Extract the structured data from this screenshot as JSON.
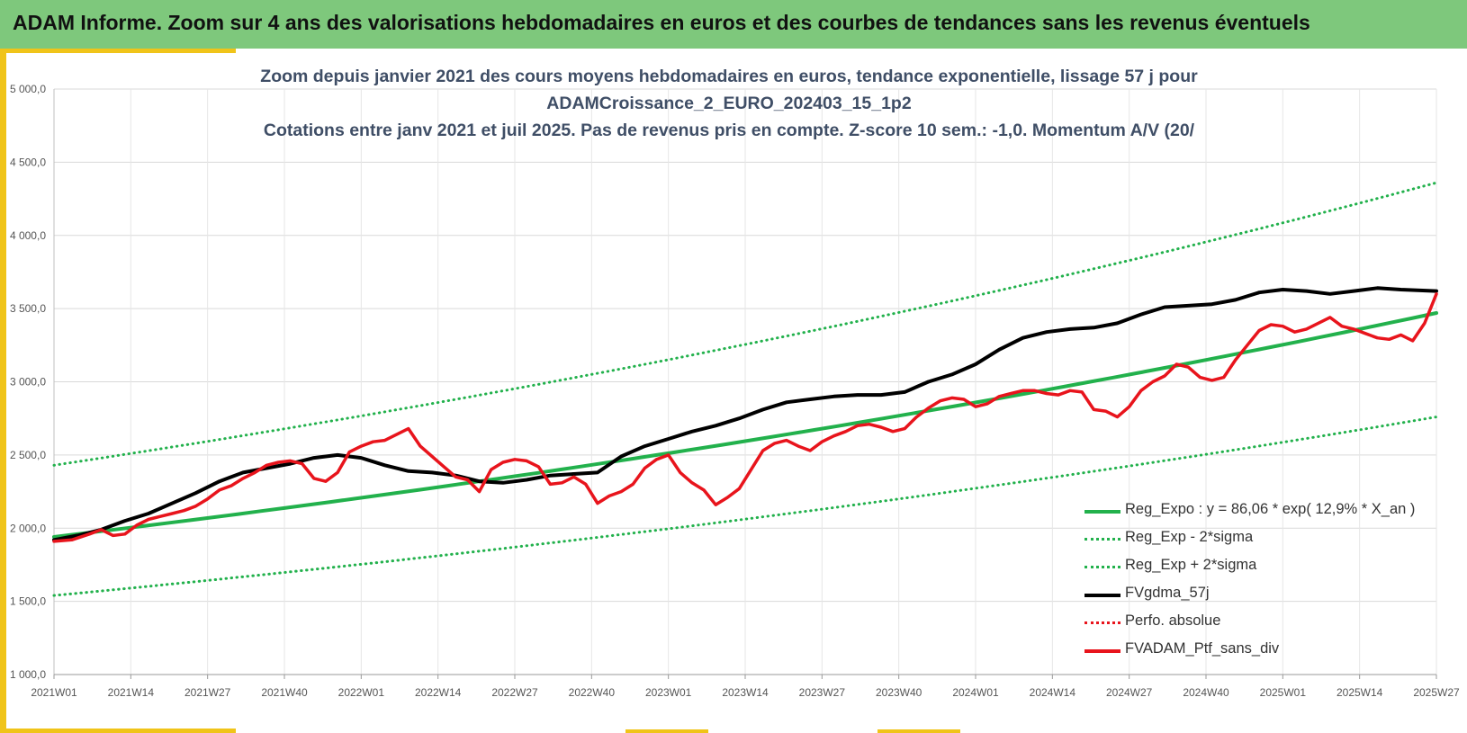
{
  "banner": {
    "title": "ADAM Informe. Zoom sur 4 ans des valorisations hebdomadaires en euros et des courbes de tendances sans les revenus éventuels"
  },
  "colors": {
    "banner_bg": "#7ec87c",
    "accent_yellow": "#f0c419",
    "trend_green": "#22b14c",
    "sigma_green": "#22b14c",
    "moving_avg": "#000000",
    "portfolio_red": "#e8141c"
  },
  "chart_data": {
    "type": "line",
    "title_lines": [
      "Zoom depuis janvier 2021 des cours moyens hebdomadaires  en euros, tendance exponentielle, lissage 57 j pour",
      "ADAMCroissance_2_EURO_202403_15_1p2",
      "Cotations  entre janv 2021 et juil 2025. Pas de revenus pris en compte. Z-score 10 sem.: -1,0. Momentum A/V (20/"
    ],
    "ylim": [
      1000,
      5000
    ],
    "y_ticks": [
      "1 000,0",
      "1 500,0",
      "2 000,0",
      "2 500,0",
      "3 000,0",
      "3 500,0",
      "4 000,0",
      "4 500,0",
      "5 000,0"
    ],
    "x_ticks": [
      "2021W01",
      "2021W14",
      "2021W27",
      "2021W40",
      "2022W01",
      "2022W14",
      "2022W27",
      "2022W40",
      "2023W01",
      "2023W14",
      "2023W27",
      "2023W40",
      "2024W01",
      "2024W14",
      "2024W27",
      "2024W40",
      "2025W01",
      "2025W14",
      "2025W27"
    ],
    "x_unit": "weeks since 2021W01",
    "grid": true,
    "legend_position": "bottom-right",
    "series": [
      {
        "name": "Reg_Expo : y = 86,06 * exp( 12,9% *  X_an )",
        "style": "solid-green",
        "x": [
          0,
          234
        ],
        "start": 1940,
        "end": 3470,
        "kind": "exp"
      },
      {
        "name": "Reg_Exp - 2*sigma",
        "style": "dotted-green",
        "x": [
          0,
          234
        ],
        "start": 1540,
        "end": 2760,
        "kind": "exp"
      },
      {
        "name": "Reg_Exp + 2*sigma",
        "style": "dotted-green",
        "x": [
          0,
          234
        ],
        "start": 2430,
        "end": 4360,
        "kind": "exp"
      },
      {
        "name": "FVgdma_57j",
        "style": "solid-black",
        "points": [
          [
            0,
            1920
          ],
          [
            4,
            1950
          ],
          [
            8,
            1990
          ],
          [
            12,
            2050
          ],
          [
            16,
            2100
          ],
          [
            20,
            2170
          ],
          [
            24,
            2240
          ],
          [
            28,
            2320
          ],
          [
            32,
            2380
          ],
          [
            36,
            2410
          ],
          [
            40,
            2440
          ],
          [
            44,
            2480
          ],
          [
            48,
            2500
          ],
          [
            52,
            2480
          ],
          [
            56,
            2430
          ],
          [
            60,
            2390
          ],
          [
            64,
            2380
          ],
          [
            68,
            2360
          ],
          [
            72,
            2320
          ],
          [
            76,
            2310
          ],
          [
            80,
            2330
          ],
          [
            84,
            2360
          ],
          [
            88,
            2370
          ],
          [
            92,
            2380
          ],
          [
            96,
            2490
          ],
          [
            100,
            2560
          ],
          [
            104,
            2610
          ],
          [
            108,
            2660
          ],
          [
            112,
            2700
          ],
          [
            116,
            2750
          ],
          [
            120,
            2810
          ],
          [
            124,
            2860
          ],
          [
            128,
            2880
          ],
          [
            132,
            2900
          ],
          [
            136,
            2910
          ],
          [
            140,
            2910
          ],
          [
            144,
            2930
          ],
          [
            148,
            3000
          ],
          [
            152,
            3050
          ],
          [
            156,
            3120
          ],
          [
            160,
            3220
          ],
          [
            164,
            3300
          ],
          [
            168,
            3340
          ],
          [
            172,
            3360
          ],
          [
            176,
            3370
          ],
          [
            180,
            3400
          ],
          [
            184,
            3460
          ],
          [
            188,
            3510
          ],
          [
            192,
            3520
          ],
          [
            196,
            3530
          ],
          [
            200,
            3560
          ],
          [
            204,
            3610
          ],
          [
            208,
            3630
          ],
          [
            212,
            3620
          ],
          [
            216,
            3600
          ],
          [
            220,
            3620
          ],
          [
            224,
            3640
          ],
          [
            228,
            3630
          ],
          [
            234,
            3620
          ]
        ]
      },
      {
        "name": "Perfo. absolue",
        "style": "dotted-red",
        "points": []
      },
      {
        "name": "FVADAM_Ptf_sans_div",
        "style": "solid-red",
        "points": [
          [
            0,
            1910
          ],
          [
            3,
            1920
          ],
          [
            6,
            1960
          ],
          [
            8,
            1990
          ],
          [
            10,
            1950
          ],
          [
            12,
            1960
          ],
          [
            14,
            2020
          ],
          [
            16,
            2060
          ],
          [
            18,
            2080
          ],
          [
            20,
            2100
          ],
          [
            22,
            2120
          ],
          [
            24,
            2150
          ],
          [
            26,
            2200
          ],
          [
            28,
            2260
          ],
          [
            30,
            2290
          ],
          [
            32,
            2340
          ],
          [
            34,
            2380
          ],
          [
            36,
            2430
          ],
          [
            38,
            2450
          ],
          [
            40,
            2460
          ],
          [
            42,
            2440
          ],
          [
            44,
            2340
          ],
          [
            46,
            2320
          ],
          [
            48,
            2380
          ],
          [
            50,
            2520
          ],
          [
            52,
            2560
          ],
          [
            54,
            2590
          ],
          [
            56,
            2600
          ],
          [
            58,
            2640
          ],
          [
            60,
            2680
          ],
          [
            62,
            2560
          ],
          [
            64,
            2490
          ],
          [
            66,
            2420
          ],
          [
            68,
            2350
          ],
          [
            70,
            2330
          ],
          [
            72,
            2250
          ],
          [
            74,
            2400
          ],
          [
            76,
            2450
          ],
          [
            78,
            2470
          ],
          [
            80,
            2460
          ],
          [
            82,
            2420
          ],
          [
            84,
            2300
          ],
          [
            86,
            2310
          ],
          [
            88,
            2350
          ],
          [
            90,
            2300
          ],
          [
            92,
            2170
          ],
          [
            94,
            2220
          ],
          [
            96,
            2250
          ],
          [
            98,
            2300
          ],
          [
            100,
            2410
          ],
          [
            102,
            2470
          ],
          [
            104,
            2500
          ],
          [
            106,
            2380
          ],
          [
            108,
            2310
          ],
          [
            110,
            2260
          ],
          [
            112,
            2160
          ],
          [
            114,
            2210
          ],
          [
            116,
            2270
          ],
          [
            118,
            2400
          ],
          [
            120,
            2530
          ],
          [
            122,
            2580
          ],
          [
            124,
            2600
          ],
          [
            126,
            2560
          ],
          [
            128,
            2530
          ],
          [
            130,
            2590
          ],
          [
            132,
            2630
          ],
          [
            134,
            2660
          ],
          [
            136,
            2700
          ],
          [
            138,
            2710
          ],
          [
            140,
            2690
          ],
          [
            142,
            2660
          ],
          [
            144,
            2680
          ],
          [
            146,
            2760
          ],
          [
            148,
            2820
          ],
          [
            150,
            2870
          ],
          [
            152,
            2890
          ],
          [
            154,
            2880
          ],
          [
            156,
            2830
          ],
          [
            158,
            2850
          ],
          [
            160,
            2900
          ],
          [
            162,
            2920
          ],
          [
            164,
            2940
          ],
          [
            166,
            2940
          ],
          [
            168,
            2920
          ],
          [
            170,
            2910
          ],
          [
            172,
            2940
          ],
          [
            174,
            2930
          ],
          [
            176,
            2810
          ],
          [
            178,
            2800
          ],
          [
            180,
            2760
          ],
          [
            182,
            2830
          ],
          [
            184,
            2940
          ],
          [
            186,
            3000
          ],
          [
            188,
            3040
          ],
          [
            190,
            3120
          ],
          [
            192,
            3100
          ],
          [
            194,
            3030
          ],
          [
            196,
            3010
          ],
          [
            198,
            3030
          ],
          [
            200,
            3150
          ],
          [
            202,
            3250
          ],
          [
            204,
            3350
          ],
          [
            206,
            3390
          ],
          [
            208,
            3380
          ],
          [
            210,
            3340
          ],
          [
            212,
            3360
          ],
          [
            214,
            3400
          ],
          [
            216,
            3440
          ],
          [
            218,
            3380
          ],
          [
            220,
            3360
          ],
          [
            222,
            3330
          ],
          [
            224,
            3300
          ],
          [
            226,
            3290
          ],
          [
            228,
            3320
          ],
          [
            230,
            3280
          ],
          [
            232,
            3400
          ],
          [
            234,
            3600
          ]
        ]
      }
    ]
  },
  "legend": [
    {
      "label": "Reg_Expo : y = 86,06 * exp( 12,9% *  X_an )",
      "style": "solid",
      "color": "#22b14c"
    },
    {
      "label": "Reg_Exp - 2*sigma",
      "style": "dotted",
      "color": "#22b14c"
    },
    {
      "label": "Reg_Exp + 2*sigma",
      "style": "dotted",
      "color": "#22b14c"
    },
    {
      "label": "FVgdma_57j",
      "style": "solid",
      "color": "#000000"
    },
    {
      "label": "Perfo. absolue",
      "style": "dotted",
      "color": "#e8141c"
    },
    {
      "label": "FVADAM_Ptf_sans_div",
      "style": "solid",
      "color": "#e8141c"
    }
  ]
}
